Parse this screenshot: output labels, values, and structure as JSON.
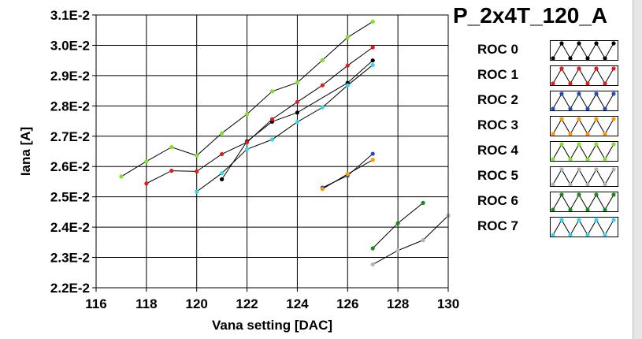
{
  "chart_data": {
    "type": "line",
    "title": "P_2x4T_120_A",
    "xlabel": "Vana setting [DAC]",
    "ylabel": "Iana [A]",
    "xlim": [
      116,
      130
    ],
    "ylim": [
      0.022,
      0.031
    ],
    "x_ticks": [
      116,
      118,
      120,
      122,
      124,
      126,
      128,
      130
    ],
    "x_tick_labels": [
      "116",
      "118",
      "120",
      "122",
      "124",
      "126",
      "128",
      "130"
    ],
    "y_ticks": [
      0.022,
      0.023,
      0.024,
      0.025,
      0.026,
      0.027,
      0.028,
      0.029,
      0.03,
      0.031
    ],
    "y_tick_labels": [
      "2.2E-2",
      "2.3E-2",
      "2.4E-2",
      "2.5E-2",
      "2.6E-2",
      "2.7E-2",
      "2.8E-2",
      "2.9E-2",
      "3.0E-2",
      "3.1E-2"
    ],
    "grid": true,
    "legend_position": "right",
    "series": [
      {
        "name": "ROC 0",
        "color": "#000000",
        "points": [
          [
            121,
            0.02558
          ],
          [
            122,
            0.02683
          ],
          [
            123,
            0.02748
          ],
          [
            124,
            0.02778
          ],
          [
            126,
            0.02876
          ],
          [
            127,
            0.0295
          ]
        ]
      },
      {
        "name": "ROC 1",
        "color": "#e31a1c",
        "points": [
          [
            118,
            0.02544
          ],
          [
            119,
            0.02586
          ],
          [
            120,
            0.02584
          ],
          [
            121,
            0.02641
          ],
          [
            122,
            0.0268
          ],
          [
            123,
            0.02756
          ],
          [
            124,
            0.02813
          ],
          [
            125,
            0.02868
          ],
          [
            126,
            0.02933
          ],
          [
            127,
            0.02993
          ]
        ]
      },
      {
        "name": "ROC 2",
        "color": "#1f4fbf",
        "points": [
          [
            125,
            0.0253
          ],
          [
            126,
            0.0257
          ],
          [
            127,
            0.02642
          ]
        ]
      },
      {
        "name": "ROC 3",
        "color": "#ff9900",
        "points": [
          [
            125,
            0.02526
          ],
          [
            126,
            0.02575
          ],
          [
            127,
            0.02622
          ]
        ]
      },
      {
        "name": "ROC 4",
        "color": "#80e02a",
        "points": [
          [
            117,
            0.02567
          ],
          [
            118,
            0.02617
          ],
          [
            119,
            0.02664
          ],
          [
            120,
            0.02636
          ],
          [
            121,
            0.0271
          ],
          [
            122,
            0.02773
          ],
          [
            123,
            0.02848
          ],
          [
            124,
            0.02877
          ],
          [
            125,
            0.02951
          ],
          [
            126,
            0.03026
          ],
          [
            127,
            0.03078
          ]
        ]
      },
      {
        "name": "ROC 5",
        "color": "#b4b4b4",
        "points": [
          [
            127,
            0.02277
          ],
          [
            128,
            0.02323
          ],
          [
            129,
            0.02357
          ],
          [
            130,
            0.02438
          ]
        ]
      },
      {
        "name": "ROC 6",
        "color": "#1a8a1a",
        "points": [
          [
            127,
            0.0233
          ],
          [
            128,
            0.02413
          ],
          [
            129,
            0.0248
          ]
        ]
      },
      {
        "name": "ROC 7",
        "color": "#33d6f0",
        "points": [
          [
            120,
            0.02517
          ],
          [
            121,
            0.02578
          ],
          [
            122,
            0.02657
          ],
          [
            123,
            0.02689
          ],
          [
            124,
            0.02747
          ],
          [
            125,
            0.02795
          ],
          [
            126,
            0.02868
          ],
          [
            127,
            0.02935
          ]
        ]
      }
    ]
  }
}
